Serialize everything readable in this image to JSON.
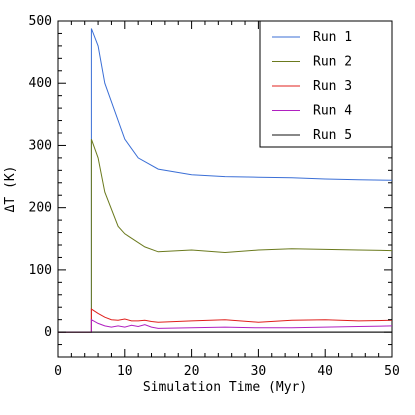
{
  "chart_data": {
    "type": "line",
    "title": "",
    "xlabel": "Simulation Time (Myr)",
    "ylabel": "ΔT (K)",
    "xlim": [
      0,
      50
    ],
    "ylim": [
      -40,
      500
    ],
    "xticks": [
      0,
      10,
      20,
      30,
      40,
      50
    ],
    "yticks": [
      0,
      100,
      200,
      300,
      400,
      500
    ],
    "grid": false,
    "legend_position": "top-right",
    "series": [
      {
        "name": "Run 1",
        "color": "#3b6fd6",
        "points": [
          [
            0,
            0
          ],
          [
            5,
            0
          ],
          [
            5,
            488
          ],
          [
            6,
            460
          ],
          [
            7,
            400
          ],
          [
            10,
            310
          ],
          [
            12,
            280
          ],
          [
            15,
            262
          ],
          [
            20,
            253
          ],
          [
            25,
            250
          ],
          [
            30,
            249
          ],
          [
            35,
            248
          ],
          [
            40,
            246
          ],
          [
            45,
            245
          ],
          [
            50,
            244
          ]
        ]
      },
      {
        "name": "Run 2",
        "color": "#6b7a1e",
        "points": [
          [
            0,
            0
          ],
          [
            5,
            0
          ],
          [
            5,
            310
          ],
          [
            6,
            280
          ],
          [
            7,
            225
          ],
          [
            9,
            170
          ],
          [
            10,
            158
          ],
          [
            13,
            137
          ],
          [
            15,
            129
          ],
          [
            20,
            132
          ],
          [
            25,
            128
          ],
          [
            30,
            132
          ],
          [
            35,
            134
          ],
          [
            40,
            133
          ],
          [
            45,
            132
          ],
          [
            50,
            131
          ]
        ]
      },
      {
        "name": "Run 3",
        "color": "#e0201c",
        "points": [
          [
            0,
            0
          ],
          [
            5,
            0
          ],
          [
            5,
            37
          ],
          [
            6,
            30
          ],
          [
            7,
            24
          ],
          [
            8,
            20
          ],
          [
            9,
            19
          ],
          [
            10,
            21
          ],
          [
            11,
            18
          ],
          [
            12,
            18
          ],
          [
            13,
            19
          ],
          [
            14,
            17
          ],
          [
            15,
            16
          ],
          [
            20,
            18
          ],
          [
            25,
            20
          ],
          [
            30,
            16
          ],
          [
            35,
            19
          ],
          [
            40,
            20
          ],
          [
            45,
            18
          ],
          [
            50,
            19
          ]
        ]
      },
      {
        "name": "Run 4",
        "color": "#b020c0",
        "points": [
          [
            0,
            0
          ],
          [
            5,
            0
          ],
          [
            5,
            20
          ],
          [
            6,
            14
          ],
          [
            7,
            10
          ],
          [
            8,
            8
          ],
          [
            9,
            10
          ],
          [
            10,
            8
          ],
          [
            11,
            11
          ],
          [
            12,
            9
          ],
          [
            13,
            12
          ],
          [
            14,
            8
          ],
          [
            15,
            6
          ],
          [
            20,
            7
          ],
          [
            25,
            8
          ],
          [
            30,
            7
          ],
          [
            35,
            7
          ],
          [
            40,
            8
          ],
          [
            45,
            9
          ],
          [
            50,
            10
          ]
        ]
      },
      {
        "name": "Run 5",
        "color": "#111111",
        "points": [
          [
            0,
            0
          ],
          [
            50,
            0
          ]
        ]
      }
    ]
  }
}
